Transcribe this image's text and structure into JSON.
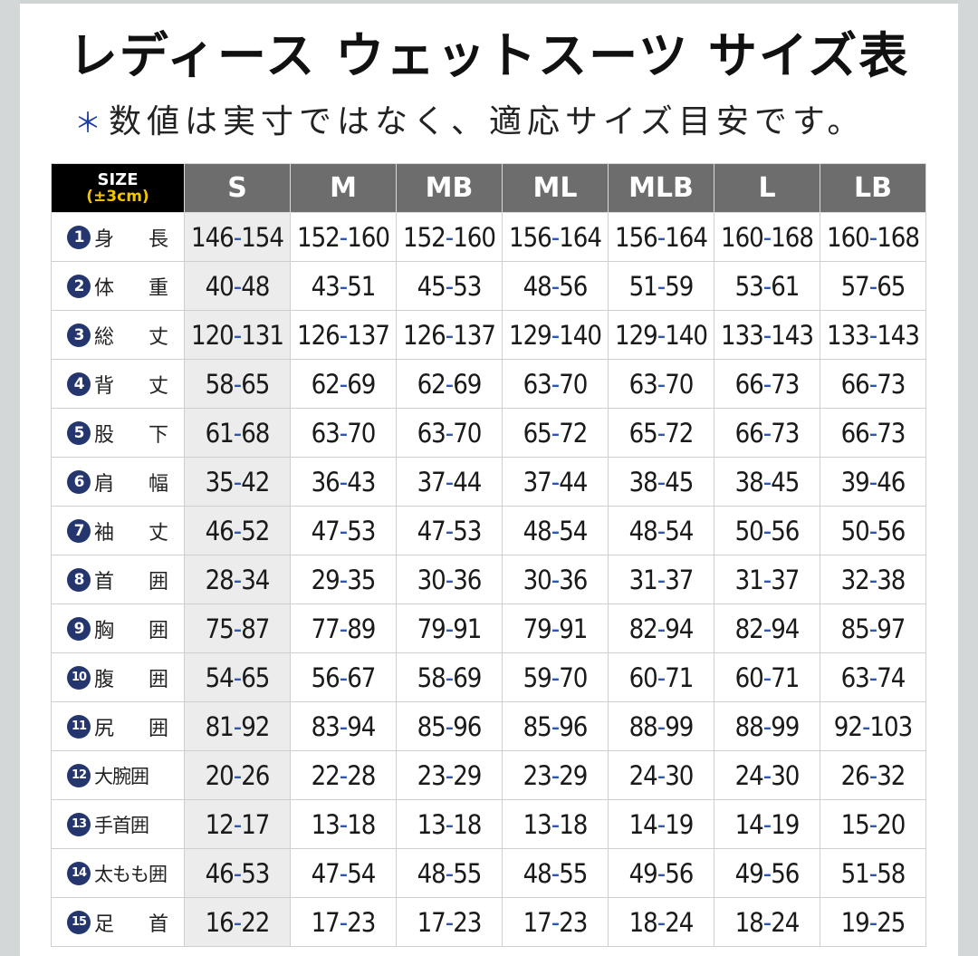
{
  "title": "レディース ウェットスーツ サイズ表",
  "subtitle": {
    "asterisk": "＊",
    "text": "数値は実寸ではなく、適応サイズ目安です。"
  },
  "table": {
    "corner": {
      "line1": "SIZE",
      "line2": "(±3cm)"
    },
    "columns": [
      "S",
      "M",
      "MB",
      "ML",
      "MLB",
      "L",
      "LB"
    ],
    "rows": [
      {
        "num": "1",
        "label": "身長",
        "values": [
          "146-154",
          "152-160",
          "152-160",
          "156-164",
          "156-164",
          "160-168",
          "160-168"
        ]
      },
      {
        "num": "2",
        "label": "体重",
        "values": [
          "40-48",
          "43-51",
          "45-53",
          "48-56",
          "51-59",
          "53-61",
          "57-65"
        ]
      },
      {
        "num": "3",
        "label": "総丈",
        "values": [
          "120-131",
          "126-137",
          "126-137",
          "129-140",
          "129-140",
          "133-143",
          "133-143"
        ]
      },
      {
        "num": "4",
        "label": "背丈",
        "values": [
          "58-65",
          "62-69",
          "62-69",
          "63-70",
          "63-70",
          "66-73",
          "66-73"
        ]
      },
      {
        "num": "5",
        "label": "股下",
        "values": [
          "61-68",
          "63-70",
          "63-70",
          "65-72",
          "65-72",
          "66-73",
          "66-73"
        ]
      },
      {
        "num": "6",
        "label": "肩幅",
        "values": [
          "35-42",
          "36-43",
          "37-44",
          "37-44",
          "38-45",
          "38-45",
          "39-46"
        ]
      },
      {
        "num": "7",
        "label": "袖丈",
        "values": [
          "46-52",
          "47-53",
          "47-53",
          "48-54",
          "48-54",
          "50-56",
          "50-56"
        ]
      },
      {
        "num": "8",
        "label": "首囲",
        "values": [
          "28-34",
          "29-35",
          "30-36",
          "30-36",
          "31-37",
          "31-37",
          "32-38"
        ]
      },
      {
        "num": "9",
        "label": "胸囲",
        "values": [
          "75-87",
          "77-89",
          "79-91",
          "79-91",
          "82-94",
          "82-94",
          "85-97"
        ]
      },
      {
        "num": "10",
        "label": "腹囲",
        "values": [
          "54-65",
          "56-67",
          "58-69",
          "59-70",
          "60-71",
          "60-71",
          "63-74"
        ]
      },
      {
        "num": "11",
        "label": "尻囲",
        "values": [
          "81-92",
          "83-94",
          "85-96",
          "85-96",
          "88-99",
          "88-99",
          "92-103"
        ]
      },
      {
        "num": "12",
        "label": "大腕囲",
        "values": [
          "20-26",
          "22-28",
          "23-29",
          "23-29",
          "24-30",
          "24-30",
          "26-32"
        ]
      },
      {
        "num": "13",
        "label": "手首囲",
        "values": [
          "12-17",
          "13-18",
          "13-18",
          "13-18",
          "14-19",
          "14-19",
          "15-20"
        ]
      },
      {
        "num": "14",
        "label": "太もも囲",
        "values": [
          "46-53",
          "47-54",
          "48-55",
          "48-55",
          "49-56",
          "49-56",
          "51-58"
        ]
      },
      {
        "num": "15",
        "label": "足首",
        "values": [
          "16-22",
          "17-23",
          "17-23",
          "17-23",
          "18-24",
          "18-24",
          "19-25"
        ]
      }
    ]
  },
  "colors": {
    "header_bg": "#6d6d6d",
    "corner_bg": "#000000",
    "number_badge": "#25366e",
    "dash": "#2b55b8",
    "size_s_col": "#ececec"
  }
}
